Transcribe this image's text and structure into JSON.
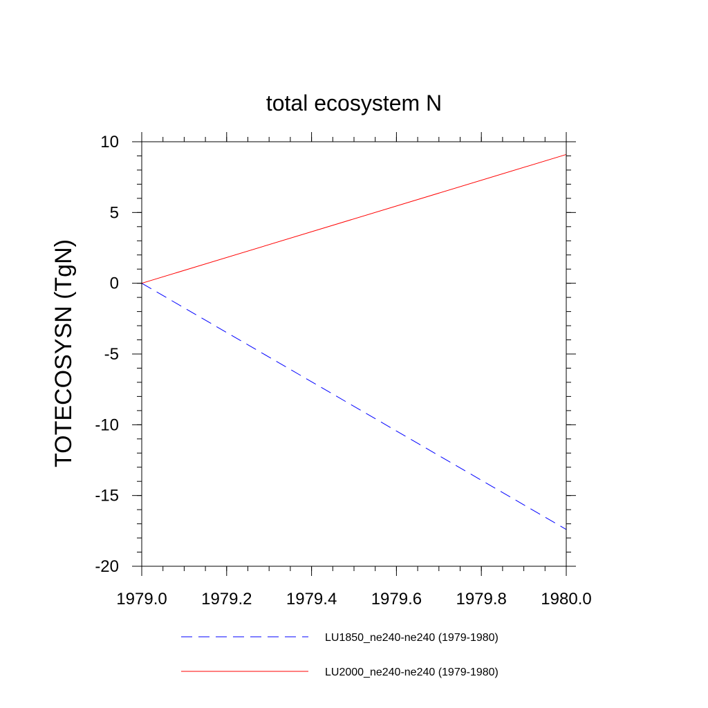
{
  "chart_data": {
    "type": "line",
    "title": "total ecosystem N",
    "xlabel": "",
    "ylabel": "TOTECOSYSN  (TgN)",
    "xlim": [
      1979.0,
      1980.0
    ],
    "ylim": [
      -20,
      10
    ],
    "xticks": [
      1979.0,
      1979.2,
      1979.4,
      1979.6,
      1979.8,
      1980.0
    ],
    "xtick_labels": [
      "1979.0",
      "1979.2",
      "1979.4",
      "1979.6",
      "1979.8",
      "1980.0"
    ],
    "xminor_step": 0.05,
    "yticks": [
      -20,
      -15,
      -10,
      -5,
      0,
      5,
      10
    ],
    "ytick_labels": [
      "-20",
      "-15",
      "-10",
      "-5",
      "0",
      "5",
      "10"
    ],
    "yminor_step": 1,
    "grid": false,
    "legend_position": "bottom",
    "series": [
      {
        "name": "LU1850_ne240-ne240 (1979-1980)",
        "color": "#0000ff",
        "line_style": "dashed",
        "x": [
          1979.0,
          1980.0
        ],
        "y": [
          0.0,
          -17.4
        ]
      },
      {
        "name": "LU2000_ne240-ne240 (1979-1980)",
        "color": "#ff0000",
        "line_style": "solid",
        "x": [
          1979.0,
          1980.0
        ],
        "y": [
          0.0,
          9.1
        ]
      }
    ]
  }
}
